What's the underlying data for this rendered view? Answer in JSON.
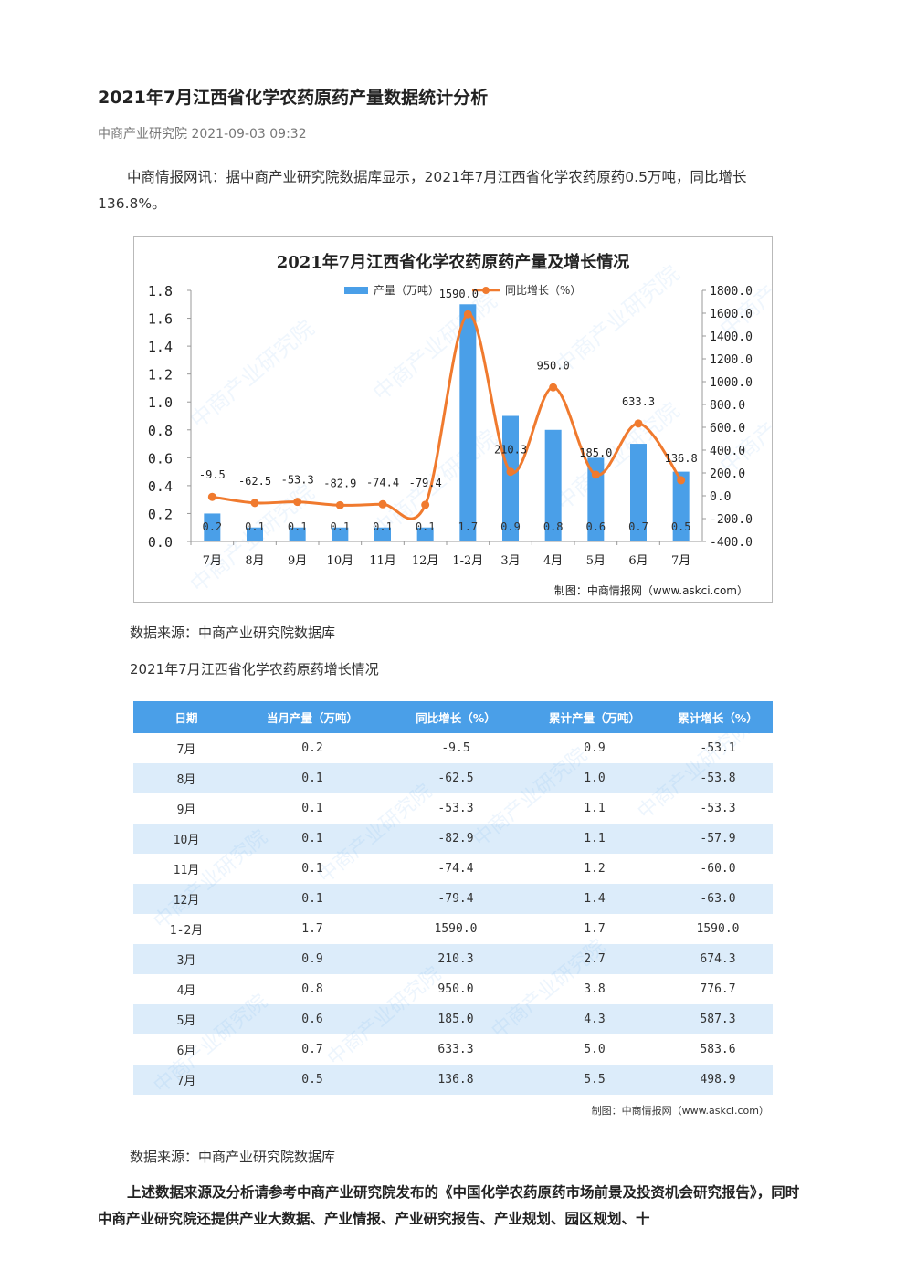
{
  "article": {
    "title": "2021年7月江西省化学农药原药产量数据统计分析",
    "meta": "中商产业研究院 2021-09-03 09:32",
    "intro": "中商情报网讯：据中商产业研究院数据库显示，2021年7月江西省化学农药原药0.5万吨，同比增长136.8%。",
    "source_note_1": "数据来源：中商产业研究院数据库",
    "table_title": "2021年7月江西省化学农药原药增长情况",
    "source_note_2": "数据来源：中商产业研究院数据库",
    "closing": "上述数据来源及分析请参考中商产业研究院发布的《中国化学农药原药市场前景及投资机会研究报告》，同时中商产业研究院还提供产业大数据、产业情报、产业研究报告、产业规划、园区规划、十"
  },
  "colors": {
    "bar": "#4a9fe8",
    "line": "#f07a2e",
    "table_header": "#4a9fe8",
    "table_stripe": "#dcecfa"
  },
  "chart_data": {
    "type": "bar",
    "title": "2021年7月江西省化学农药原药产量及增长情况",
    "categories": [
      "7月",
      "8月",
      "9月",
      "10月",
      "11月",
      "12月",
      "1-2月",
      "3月",
      "4月",
      "5月",
      "6月",
      "7月"
    ],
    "series": [
      {
        "name": "产量（万吨）",
        "type": "bar",
        "axis": "left",
        "values": [
          0.2,
          0.1,
          0.1,
          0.1,
          0.1,
          0.1,
          1.7,
          0.9,
          0.8,
          0.6,
          0.7,
          0.5
        ],
        "labels": [
          "0.2",
          "0.1",
          "0.1",
          "0.1",
          "0.1",
          "0.1",
          "1.7",
          "0.9",
          "0.8",
          "0.6",
          "0.7",
          "0.5"
        ]
      },
      {
        "name": "同比增长（%）",
        "type": "line",
        "axis": "right",
        "values": [
          -9.5,
          -62.5,
          -53.3,
          -82.9,
          -74.4,
          -79.4,
          1590.0,
          210.3,
          950.0,
          185.0,
          633.3,
          136.8
        ],
        "labels": [
          "-9.5",
          "-62.5",
          "-53.3",
          "-82.9",
          "-74.4",
          "-79.4",
          "1590.0",
          "210.3",
          "950.0",
          "185.0",
          "633.3",
          "136.8"
        ]
      }
    ],
    "y_left": {
      "min": 0,
      "max": 1.8,
      "ticks": [
        "0.0",
        "0.2",
        "0.4",
        "0.6",
        "0.8",
        "1.0",
        "1.2",
        "1.4",
        "1.6",
        "1.8"
      ]
    },
    "y_right": {
      "min": -400,
      "max": 1800,
      "ticks": [
        "-400.0",
        "-200.0",
        "0.0",
        "200.0",
        "400.0",
        "600.0",
        "800.0",
        "1000.0",
        "1200.0",
        "1400.0",
        "1600.0",
        "1800.0"
      ]
    },
    "legend": "top-center",
    "credit": "制图：中商情报网（www.askci.com）",
    "watermark": "中商产业研究院"
  },
  "table": {
    "headers": [
      "日期",
      "当月产量（万吨）",
      "同比增长（%）",
      "累计产量（万吨）",
      "累计增长（%）"
    ],
    "rows": [
      [
        "7月",
        "0.2",
        "-9.5",
        "0.9",
        "-53.1"
      ],
      [
        "8月",
        "0.1",
        "-62.5",
        "1.0",
        "-53.8"
      ],
      [
        "9月",
        "0.1",
        "-53.3",
        "1.1",
        "-53.3"
      ],
      [
        "10月",
        "0.1",
        "-82.9",
        "1.1",
        "-57.9"
      ],
      [
        "11月",
        "0.1",
        "-74.4",
        "1.2",
        "-60.0"
      ],
      [
        "12月",
        "0.1",
        "-79.4",
        "1.4",
        "-63.0"
      ],
      [
        "1-2月",
        "1.7",
        "1590.0",
        "1.7",
        "1590.0"
      ],
      [
        "3月",
        "0.9",
        "210.3",
        "2.7",
        "674.3"
      ],
      [
        "4月",
        "0.8",
        "950.0",
        "3.8",
        "776.7"
      ],
      [
        "5月",
        "0.6",
        "185.0",
        "4.3",
        "587.3"
      ],
      [
        "6月",
        "0.7",
        "633.3",
        "5.0",
        "583.6"
      ],
      [
        "7月",
        "0.5",
        "136.8",
        "5.5",
        "498.9"
      ]
    ],
    "credit": "制图：中商情报网（www.askci.com）"
  }
}
